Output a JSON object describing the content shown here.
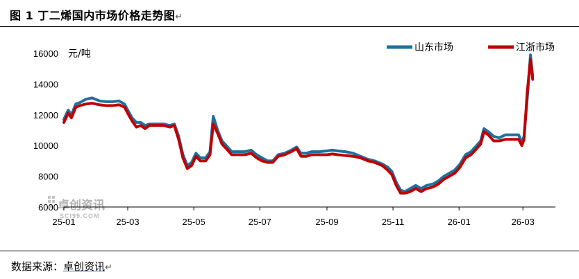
{
  "header": {
    "title": "图 1  丁二烯国内市场价格走势图",
    "mark": "↵"
  },
  "footer": {
    "source_label": "数据来源：",
    "source_name": "卓创资讯",
    "mark": "↵"
  },
  "watermark": {
    "text": "卓创资讯",
    "sub": "SCI99.COM"
  },
  "colors": {
    "shandong": "#1f6f9f",
    "jiangzhe": "#c00000"
  },
  "chart_data": {
    "type": "line",
    "title": "丁二烯国内市场价格走势图",
    "ylabel": "元/吨",
    "xlabel": "",
    "ylim": [
      6000,
      16000
    ],
    "yticks": [
      "6000",
      "8000",
      "10000",
      "12000",
      "14000",
      "16000"
    ],
    "xticks": [
      "25-01",
      "25-03",
      "25-05",
      "25-07",
      "25-09",
      "25-11",
      "26-01",
      "26-03"
    ],
    "legend_position": "top-right",
    "grid": false,
    "series": [
      {
        "name": "山东市场",
        "color": "#1f6f9f",
        "points": [
          [
            "25-01-01",
            11700
          ],
          [
            "25-01-05",
            12300
          ],
          [
            "25-01-08",
            12000
          ],
          [
            "25-01-12",
            12700
          ],
          [
            "25-01-16",
            12800
          ],
          [
            "25-01-21",
            13000
          ],
          [
            "25-01-27",
            13100
          ],
          [
            "25-02-03",
            12900
          ],
          [
            "25-02-09",
            12850
          ],
          [
            "25-02-15",
            12850
          ],
          [
            "25-02-21",
            12900
          ],
          [
            "25-02-26",
            12700
          ],
          [
            "25-03-01",
            12300
          ],
          [
            "25-03-05",
            11800
          ],
          [
            "25-03-09",
            11500
          ],
          [
            "25-03-13",
            11500
          ],
          [
            "25-03-17",
            11300
          ],
          [
            "25-03-21",
            11400
          ],
          [
            "25-03-27",
            11400
          ],
          [
            "25-04-03",
            11400
          ],
          [
            "25-04-09",
            11300
          ],
          [
            "25-04-13",
            11400
          ],
          [
            "25-04-17",
            10600
          ],
          [
            "25-04-21",
            9400
          ],
          [
            "25-04-25",
            8700
          ],
          [
            "25-04-29",
            8900
          ],
          [
            "25-05-03",
            9500
          ],
          [
            "25-05-07",
            9200
          ],
          [
            "25-05-12",
            9200
          ],
          [
            "25-05-16",
            9600
          ],
          [
            "25-05-19",
            11900
          ],
          [
            "25-05-23",
            11000
          ],
          [
            "25-05-27",
            10300
          ],
          [
            "25-05-31",
            10000
          ],
          [
            "25-06-05",
            9600
          ],
          [
            "25-06-11",
            9600
          ],
          [
            "25-06-17",
            9600
          ],
          [
            "25-06-23",
            9700
          ],
          [
            "25-06-28",
            9400
          ],
          [
            "25-07-03",
            9200
          ],
          [
            "25-07-08",
            9000
          ],
          [
            "25-07-13",
            9000
          ],
          [
            "25-07-18",
            9400
          ],
          [
            "25-07-24",
            9500
          ],
          [
            "25-07-30",
            9700
          ],
          [
            "25-08-04",
            9900
          ],
          [
            "25-08-08",
            9500
          ],
          [
            "25-08-13",
            9500
          ],
          [
            "25-08-18",
            9600
          ],
          [
            "25-08-25",
            9600
          ],
          [
            "25-09-01",
            9650
          ],
          [
            "25-09-06",
            9700
          ],
          [
            "25-09-11",
            9650
          ],
          [
            "25-09-18",
            9600
          ],
          [
            "25-09-25",
            9500
          ],
          [
            "25-10-02",
            9300
          ],
          [
            "25-10-09",
            9100
          ],
          [
            "25-10-15",
            9000
          ],
          [
            "25-10-22",
            8800
          ],
          [
            "25-10-27",
            8600
          ],
          [
            "25-10-31",
            8300
          ],
          [
            "25-11-04",
            7600
          ],
          [
            "25-11-08",
            7100
          ],
          [
            "25-11-12",
            7000
          ],
          [
            "25-11-17",
            7200
          ],
          [
            "25-11-22",
            7400
          ],
          [
            "25-11-27",
            7200
          ],
          [
            "25-12-02",
            7400
          ],
          [
            "25-12-08",
            7500
          ],
          [
            "25-12-13",
            7700
          ],
          [
            "25-12-18",
            8000
          ],
          [
            "25-12-23",
            8200
          ],
          [
            "25-12-28",
            8400
          ],
          [
            "26-01-02",
            8800
          ],
          [
            "26-01-07",
            9400
          ],
          [
            "26-01-12",
            9600
          ],
          [
            "26-01-16",
            9900
          ],
          [
            "26-01-21",
            10300
          ],
          [
            "26-01-24",
            11100
          ],
          [
            "26-01-28",
            10900
          ],
          [
            "26-02-02",
            10600
          ],
          [
            "26-02-07",
            10500
          ],
          [
            "26-02-13",
            10700
          ],
          [
            "26-02-19",
            10700
          ],
          [
            "26-02-25",
            10700
          ],
          [
            "26-02-28",
            10200
          ],
          [
            "26-03-02",
            10600
          ],
          [
            "26-03-05",
            13100
          ],
          [
            "26-03-08",
            15900
          ],
          [
            "26-03-10",
            14500
          ]
        ]
      },
      {
        "name": "江浙市场",
        "color": "#c00000",
        "points": [
          [
            "25-01-01",
            11500
          ],
          [
            "25-01-05",
            12100
          ],
          [
            "25-01-08",
            11800
          ],
          [
            "25-01-12",
            12500
          ],
          [
            "25-01-16",
            12600
          ],
          [
            "25-01-21",
            12700
          ],
          [
            "25-01-27",
            12750
          ],
          [
            "25-02-03",
            12650
          ],
          [
            "25-02-09",
            12600
          ],
          [
            "25-02-15",
            12600
          ],
          [
            "25-02-21",
            12650
          ],
          [
            "25-02-26",
            12500
          ],
          [
            "25-03-01",
            12100
          ],
          [
            "25-03-05",
            11600
          ],
          [
            "25-03-09",
            11200
          ],
          [
            "25-03-13",
            11300
          ],
          [
            "25-03-17",
            11100
          ],
          [
            "25-03-21",
            11300
          ],
          [
            "25-03-27",
            11300
          ],
          [
            "25-04-03",
            11300
          ],
          [
            "25-04-09",
            11200
          ],
          [
            "25-04-13",
            11300
          ],
          [
            "25-04-17",
            10400
          ],
          [
            "25-04-21",
            9200
          ],
          [
            "25-04-25",
            8500
          ],
          [
            "25-04-29",
            8700
          ],
          [
            "25-05-03",
            9300
          ],
          [
            "25-05-07",
            9000
          ],
          [
            "25-05-12",
            9000
          ],
          [
            "25-05-16",
            9400
          ],
          [
            "25-05-19",
            11400
          ],
          [
            "25-05-23",
            10800
          ],
          [
            "25-05-27",
            10100
          ],
          [
            "25-05-31",
            9800
          ],
          [
            "25-06-05",
            9400
          ],
          [
            "25-06-11",
            9400
          ],
          [
            "25-06-17",
            9400
          ],
          [
            "25-06-23",
            9500
          ],
          [
            "25-06-28",
            9200
          ],
          [
            "25-07-03",
            9000
          ],
          [
            "25-07-08",
            8900
          ],
          [
            "25-07-13",
            8900
          ],
          [
            "25-07-18",
            9300
          ],
          [
            "25-07-24",
            9400
          ],
          [
            "25-07-30",
            9600
          ],
          [
            "25-08-04",
            9800
          ],
          [
            "25-08-08",
            9300
          ],
          [
            "25-08-13",
            9300
          ],
          [
            "25-08-18",
            9400
          ],
          [
            "25-08-25",
            9400
          ],
          [
            "25-09-01",
            9400
          ],
          [
            "25-09-06",
            9450
          ],
          [
            "25-09-11",
            9400
          ],
          [
            "25-09-18",
            9350
          ],
          [
            "25-09-25",
            9300
          ],
          [
            "25-10-02",
            9200
          ],
          [
            "25-10-09",
            9000
          ],
          [
            "25-10-15",
            8900
          ],
          [
            "25-10-22",
            8700
          ],
          [
            "25-10-27",
            8400
          ],
          [
            "25-10-31",
            8100
          ],
          [
            "25-11-04",
            7400
          ],
          [
            "25-11-08",
            6900
          ],
          [
            "25-11-12",
            6900
          ],
          [
            "25-11-17",
            7000
          ],
          [
            "25-11-22",
            7200
          ],
          [
            "25-11-27",
            7000
          ],
          [
            "25-12-02",
            7200
          ],
          [
            "25-12-08",
            7300
          ],
          [
            "25-12-13",
            7500
          ],
          [
            "25-12-18",
            7800
          ],
          [
            "25-12-23",
            8000
          ],
          [
            "25-12-28",
            8200
          ],
          [
            "26-01-02",
            8600
          ],
          [
            "26-01-07",
            9200
          ],
          [
            "26-01-12",
            9400
          ],
          [
            "26-01-16",
            9700
          ],
          [
            "26-01-21",
            10100
          ],
          [
            "26-01-24",
            10900
          ],
          [
            "26-01-28",
            10700
          ],
          [
            "26-02-02",
            10300
          ],
          [
            "26-02-07",
            10300
          ],
          [
            "26-02-13",
            10400
          ],
          [
            "26-02-19",
            10400
          ],
          [
            "26-02-25",
            10400
          ],
          [
            "26-02-28",
            10000
          ],
          [
            "26-03-02",
            10400
          ],
          [
            "26-03-05",
            13500
          ],
          [
            "26-03-08",
            15600
          ],
          [
            "26-03-10",
            14300
          ]
        ]
      }
    ]
  }
}
